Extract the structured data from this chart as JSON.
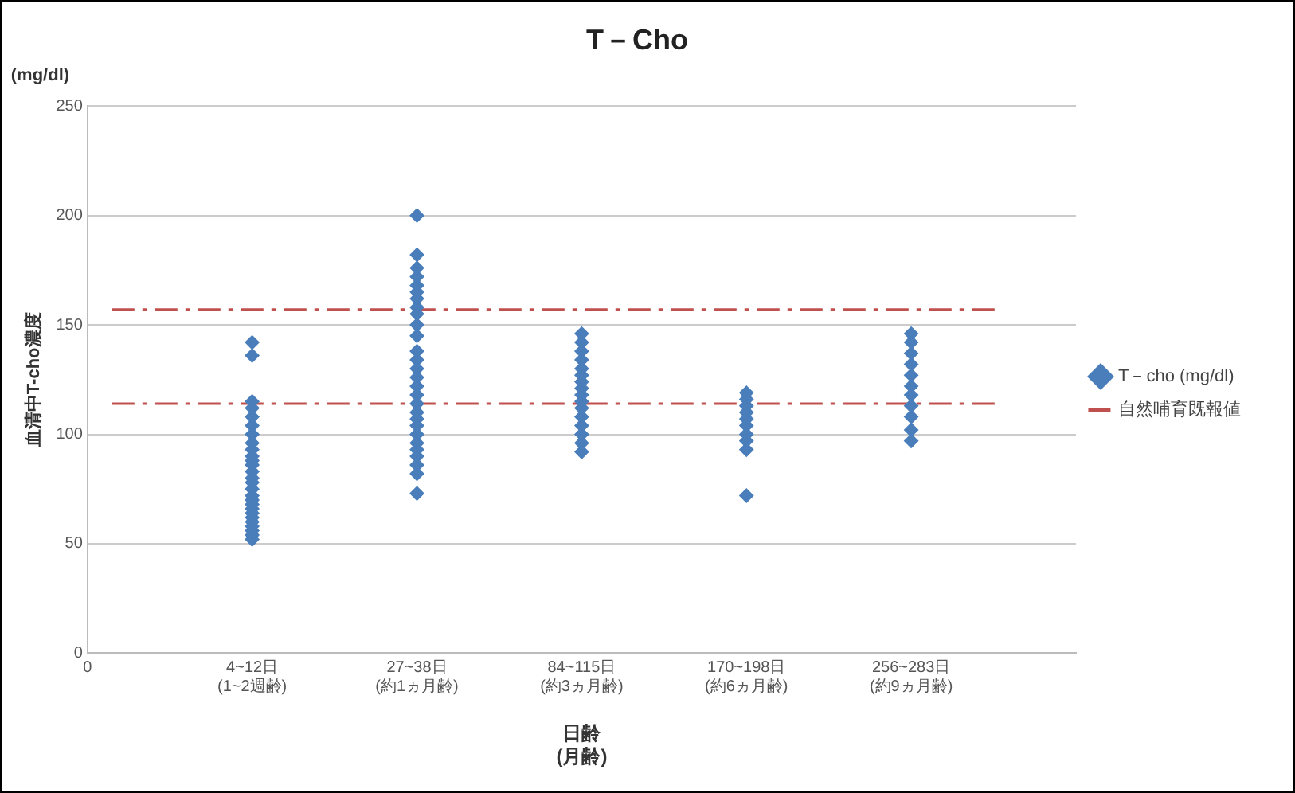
{
  "chart_data": {
    "type": "scatter",
    "title": "T－Cho",
    "ylabel": "血清中T-cho濃度",
    "xlabel": "日齢\n(月齢)",
    "annotations": [
      "(mg/dl)"
    ],
    "categories": [
      "0",
      "4~12日\n(1~2週齢)",
      "27~38日\n(約1ヵ月齢)",
      "84~115日\n(約3ヵ月齢)",
      "170~198日\n(約6ヵ月齢)",
      "256~283日\n(約9ヵ月齢)",
      null
    ],
    "series": [
      {
        "name": "T－cho (mg/dl)",
        "color": "#4a7ebb",
        "x": [
          "4~12日\n(1~2週齢)",
          "4~12日\n(1~2週齢)",
          "4~12日\n(1~2週齢)",
          "4~12日\n(1~2週齢)",
          "4~12日\n(1~2週齢)",
          "4~12日\n(1~2週齢)",
          "4~12日\n(1~2週齢)",
          "4~12日\n(1~2週齢)",
          "4~12日\n(1~2週齢)",
          "4~12日\n(1~2週齢)",
          "4~12日\n(1~2週齢)",
          "4~12日\n(1~2週齢)",
          "4~12日\n(1~2週齢)",
          "4~12日\n(1~2週齢)",
          "4~12日\n(1~2週齢)",
          "4~12日\n(1~2週齢)",
          "4~12日\n(1~2週齢)",
          "4~12日\n(1~2週齢)",
          "4~12日\n(1~2週齢)",
          "4~12日\n(1~2週齢)",
          "4~12日\n(1~2週齢)",
          "4~12日\n(1~2週齢)",
          "4~12日\n(1~2週齢)",
          "4~12日\n(1~2週齢)",
          "4~12日\n(1~2週齢)",
          "4~12日\n(1~2週齢)",
          "4~12日\n(1~2週齢)",
          "27~38日\n(約1ヵ月齢)",
          "27~38日\n(約1ヵ月齢)",
          "27~38日\n(約1ヵ月齢)",
          "27~38日\n(約1ヵ月齢)",
          "27~38日\n(約1ヵ月齢)",
          "27~38日\n(約1ヵ月齢)",
          "27~38日\n(約1ヵ月齢)",
          "27~38日\n(約1ヵ月齢)",
          "27~38日\n(約1ヵ月齢)",
          "27~38日\n(約1ヵ月齢)",
          "27~38日\n(約1ヵ月齢)",
          "27~38日\n(約1ヵ月齢)",
          "27~38日\n(約1ヵ月齢)",
          "27~38日\n(約1ヵ月齢)",
          "27~38日\n(約1ヵ月齢)",
          "27~38日\n(約1ヵ月齢)",
          "27~38日\n(約1ヵ月齢)",
          "27~38日\n(約1ヵ月齢)",
          "27~38日\n(約1ヵ月齢)",
          "27~38日\n(約1ヵ月齢)",
          "27~38日\n(約1ヵ月齢)",
          "27~38日\n(約1ヵ月齢)",
          "27~38日\n(約1ヵ月齢)",
          "27~38日\n(約1ヵ月齢)",
          "27~38日\n(約1ヵ月齢)",
          "27~38日\n(約1ヵ月齢)",
          "27~38日\n(約1ヵ月齢)",
          "27~38日\n(約1ヵ月齢)",
          "84~115日\n(約3ヵ月齢)",
          "84~115日\n(約3ヵ月齢)",
          "84~115日\n(約3ヵ月齢)",
          "84~115日\n(約3ヵ月齢)",
          "84~115日\n(約3ヵ月齢)",
          "84~115日\n(約3ヵ月齢)",
          "84~115日\n(約3ヵ月齢)",
          "84~115日\n(約3ヵ月齢)",
          "84~115日\n(約3ヵ月齢)",
          "84~115日\n(約3ヵ月齢)",
          "84~115日\n(約3ヵ月齢)",
          "84~115日\n(約3ヵ月齢)",
          "84~115日\n(約3ヵ月齢)",
          "84~115日\n(約3ヵ月齢)",
          "84~115日\n(約3ヵ月齢)",
          "84~115日\n(約3ヵ月齢)",
          "170~198日\n(約6ヵ月齢)",
          "170~198日\n(約6ヵ月齢)",
          "170~198日\n(約6ヵ月齢)",
          "170~198日\n(約6ヵ月齢)",
          "170~198日\n(約6ヵ月齢)",
          "170~198日\n(約6ヵ月齢)",
          "170~198日\n(約6ヵ月齢)",
          "170~198日\n(約6ヵ月齢)",
          "170~198日\n(約6ヵ月齢)",
          "170~198日\n(約6ヵ月齢)",
          "256~283日\n(約9ヵ月齢)",
          "256~283日\n(約9ヵ月齢)",
          "256~283日\n(約9ヵ月齢)",
          "256~283日\n(約9ヵ月齢)",
          "256~283日\n(約9ヵ月齢)",
          "256~283日\n(約9ヵ月齢)",
          "256~283日\n(約9ヵ月齢)",
          "256~283日\n(約9ヵ月齢)",
          "256~283日\n(約9ヵ月齢)",
          "256~283日\n(約9ヵ月齢)",
          "256~283日\n(約9ヵ月齢)"
        ],
        "values": [
          52,
          54,
          56,
          58,
          60,
          62,
          64,
          66,
          68,
          70,
          72,
          75,
          78,
          80,
          83,
          86,
          88,
          90,
          93,
          96,
          100,
          104,
          108,
          112,
          115,
          136,
          142,
          73,
          82,
          86,
          90,
          93,
          96,
          100,
          104,
          107,
          110,
          114,
          118,
          122,
          126,
          130,
          134,
          138,
          145,
          150,
          155,
          158,
          162,
          165,
          168,
          172,
          176,
          182,
          200,
          92,
          96,
          100,
          104,
          108,
          112,
          115,
          118,
          121,
          124,
          127,
          130,
          134,
          138,
          142,
          146,
          72,
          93,
          97,
          100,
          104,
          107,
          110,
          113,
          116,
          119,
          97,
          102,
          108,
          113,
          118,
          122,
          127,
          132,
          137,
          142,
          146
        ]
      }
    ],
    "ref_lines": [
      {
        "axis": "y",
        "value": 157,
        "label": "自然哺育既報値",
        "color": "#c0504d",
        "line_style": "dashed"
      },
      {
        "axis": "y",
        "value": 114,
        "color": "#c0504d",
        "line_style": "dashed"
      }
    ],
    "ylim": [
      0,
      250
    ],
    "yticks": [
      0,
      50,
      100,
      150,
      200,
      250
    ],
    "grid": "y",
    "legend": "right",
    "marker": "diamond"
  }
}
